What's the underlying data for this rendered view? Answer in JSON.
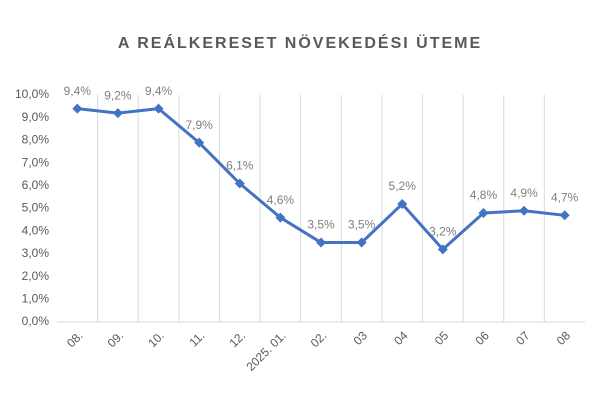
{
  "chart_data": {
    "type": "line",
    "title": "A REÁLKERESET NÖVEKEDÉSI ÜTEME",
    "categories": [
      "08.",
      "09.",
      "10.",
      "11.",
      "12.",
      "2025. 01.",
      "02.",
      "03",
      "04",
      "05",
      "06",
      "07",
      "08"
    ],
    "series": [
      {
        "name": "A reálkereset növekedési üteme",
        "color": "#4472c4",
        "values": [
          9.4,
          9.2,
          9.4,
          7.9,
          6.1,
          4.6,
          3.5,
          3.5,
          5.2,
          3.2,
          4.8,
          4.9,
          4.7
        ],
        "value_labels": [
          "9,4%",
          "9,2%",
          "9,4%",
          "7,9%",
          "6,1%",
          "4,6%",
          "3,5%",
          "3,5%",
          "5,2%",
          "3,2%",
          "4,8%",
          "4,9%",
          "4,7%"
        ]
      }
    ],
    "ylim": [
      0,
      10
    ],
    "yticks": [
      {
        "value": 0,
        "label": "0,0%"
      },
      {
        "value": 1,
        "label": "1,0%"
      },
      {
        "value": 2,
        "label": "2,0%"
      },
      {
        "value": 3,
        "label": "3,0%"
      },
      {
        "value": 4,
        "label": "4,0%"
      },
      {
        "value": 5,
        "label": "5,0%"
      },
      {
        "value": 6,
        "label": "6,0%"
      },
      {
        "value": 7,
        "label": "7,0%"
      },
      {
        "value": 8,
        "label": "8,0%"
      },
      {
        "value": 9,
        "label": "9,0%"
      },
      {
        "value": 10,
        "label": "10,0%"
      }
    ],
    "grid": "vertical"
  }
}
